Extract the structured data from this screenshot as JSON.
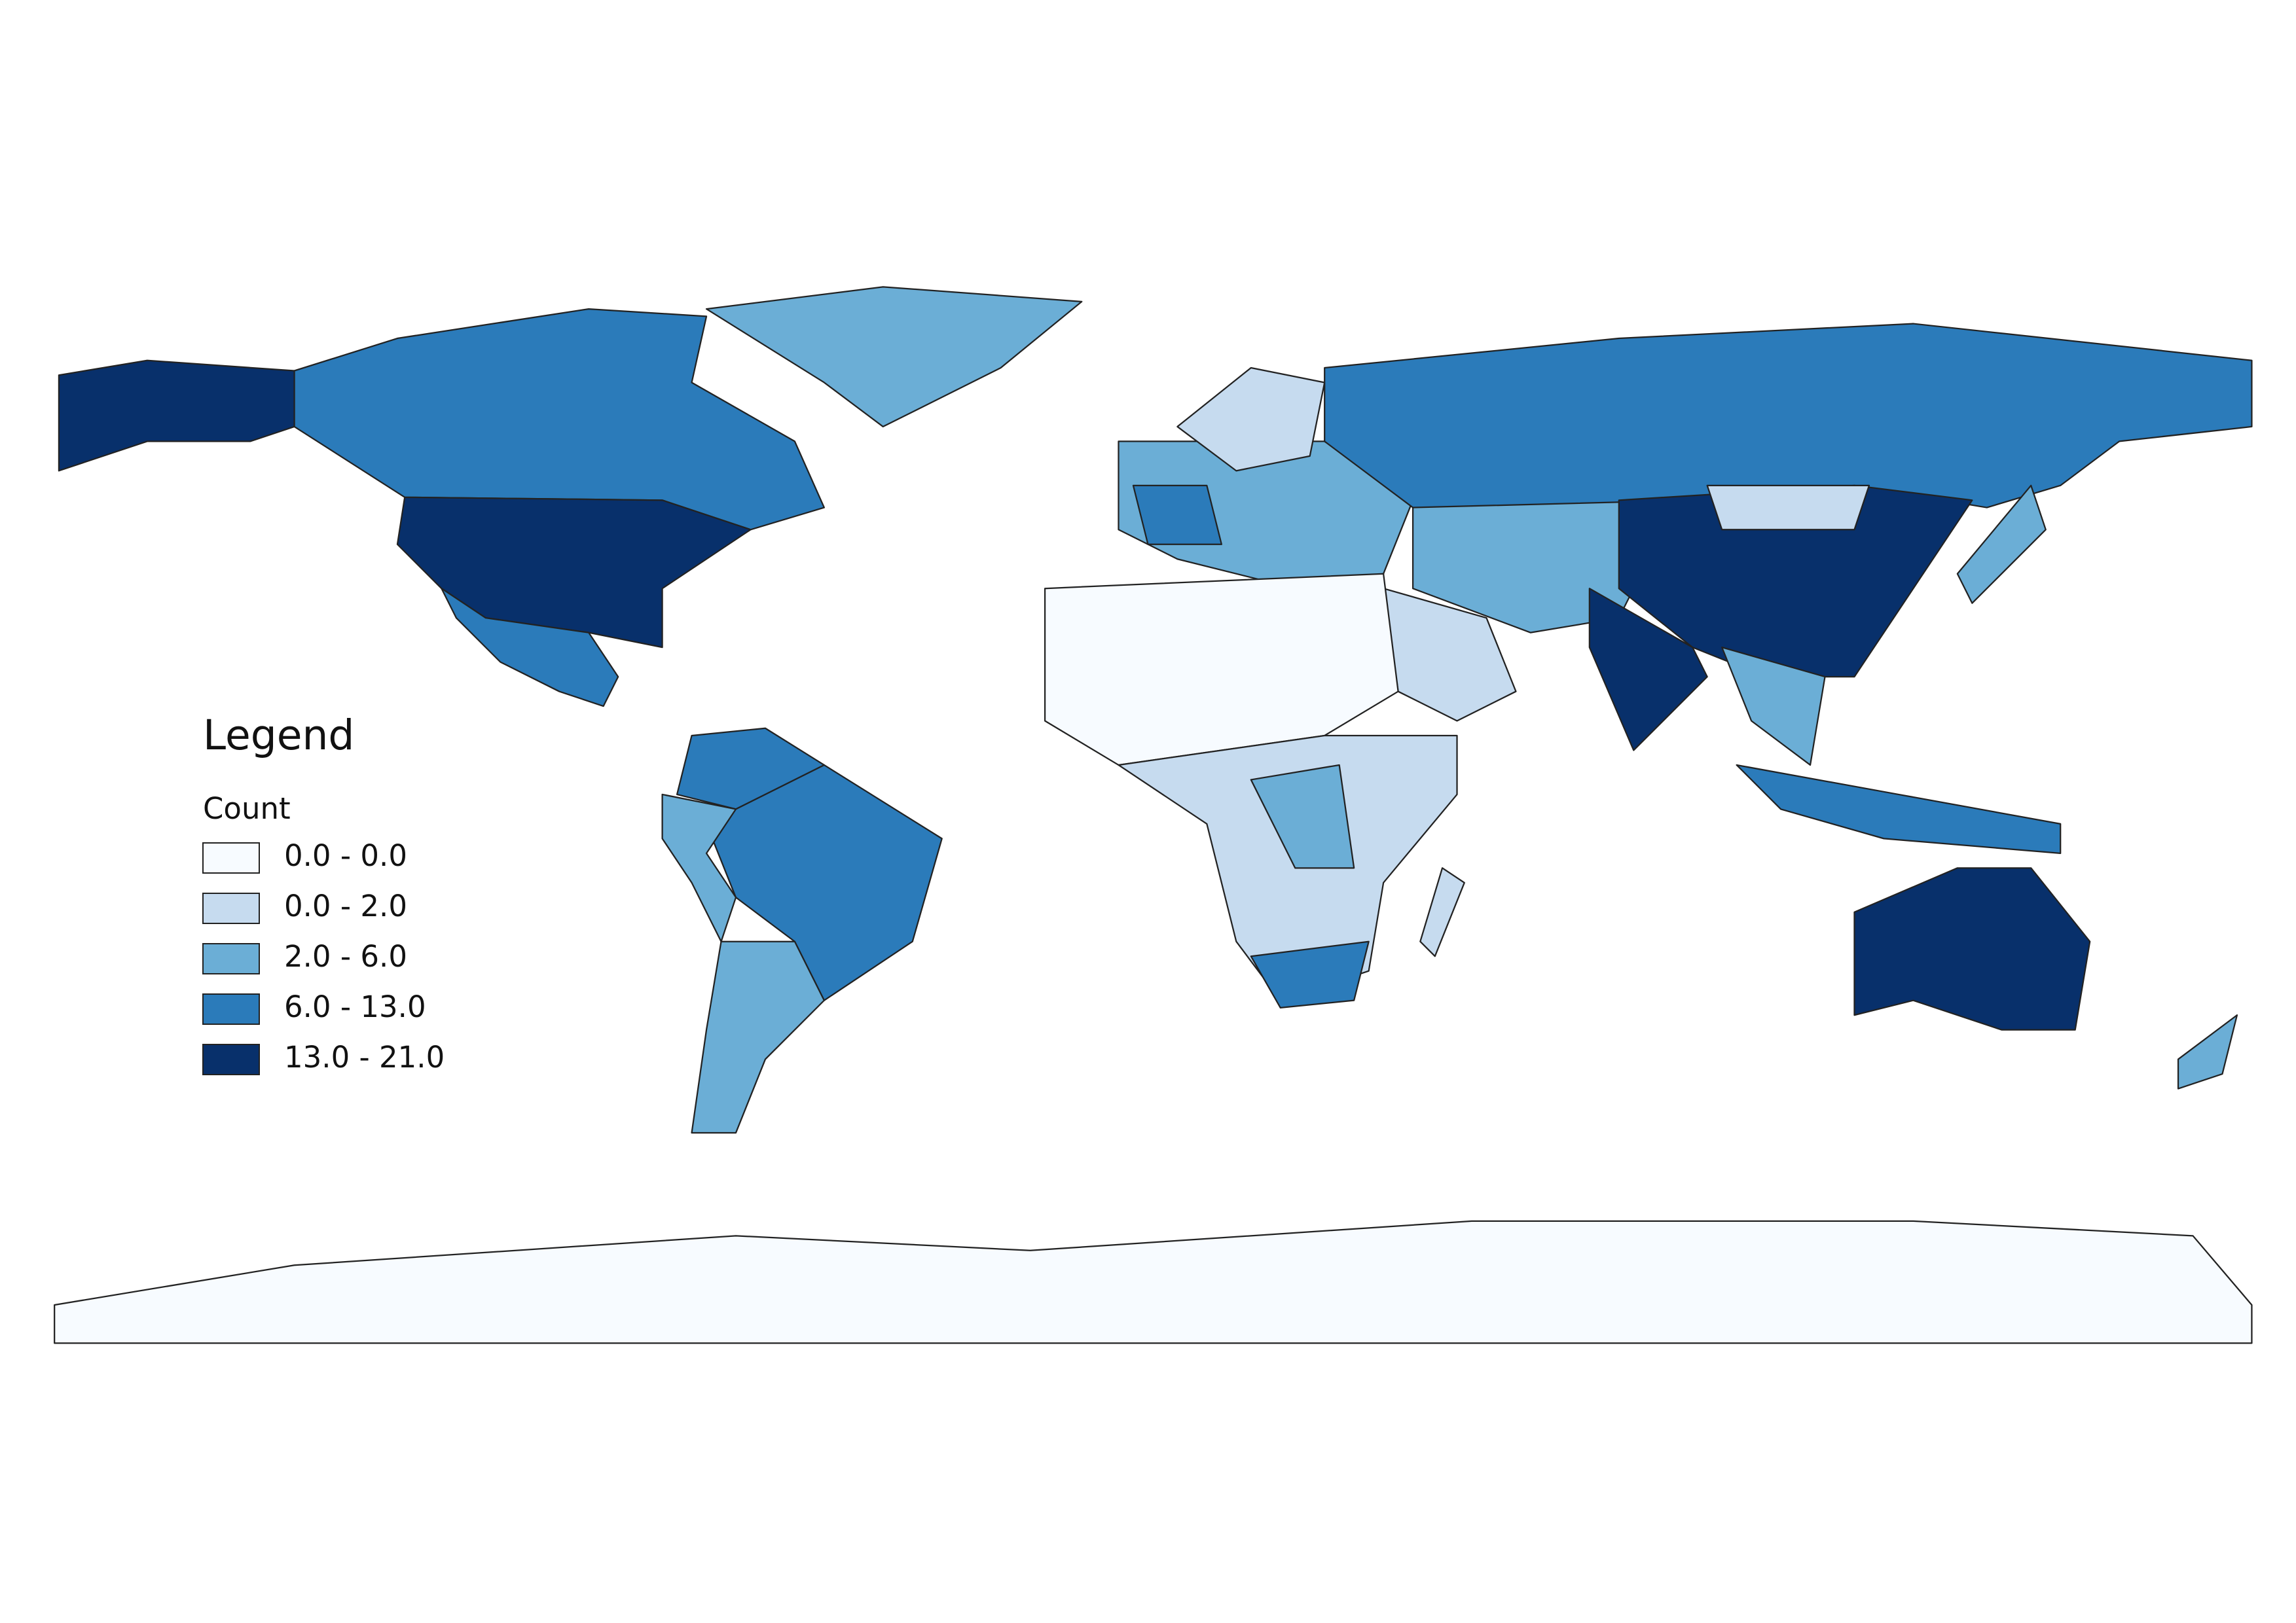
{
  "legend": {
    "title": "Legend",
    "subtitle": "Count",
    "items": [
      {
        "label": "0.0 - 0.0",
        "color": "#f7fbff"
      },
      {
        "label": "0.0 - 2.0",
        "color": "#c6dbef"
      },
      {
        "label": "2.0 - 6.0",
        "color": "#6baed6"
      },
      {
        "label": "6.0 - 13.0",
        "color": "#2b7bba"
      },
      {
        "label": "13.0 - 21.0",
        "color": "#08306b"
      }
    ]
  }
}
